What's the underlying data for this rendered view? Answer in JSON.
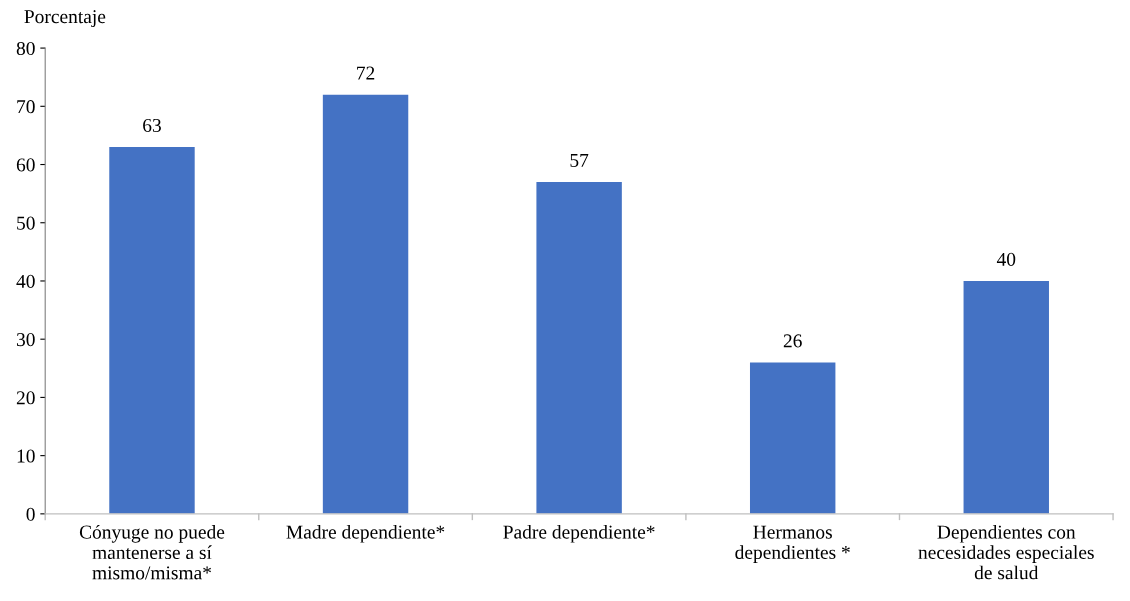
{
  "chart_data": {
    "type": "bar",
    "ylabel": "Porcentaje",
    "categories": [
      "Cónyuge no puede\nmantenerse a sí\nmismo/misma*",
      "Madre dependiente*",
      "Padre dependiente*",
      "Hermanos\ndependientes *",
      "Dependientes con\nnecesidades especiales\nde salud"
    ],
    "values": [
      63,
      72,
      57,
      26,
      40
    ],
    "color": "#4472c4",
    "ylim": [
      0,
      80
    ],
    "yticks": [
      0,
      10,
      20,
      30,
      40,
      50,
      60,
      70,
      80
    ],
    "grid": false,
    "legend": false,
    "data_labels": true
  }
}
